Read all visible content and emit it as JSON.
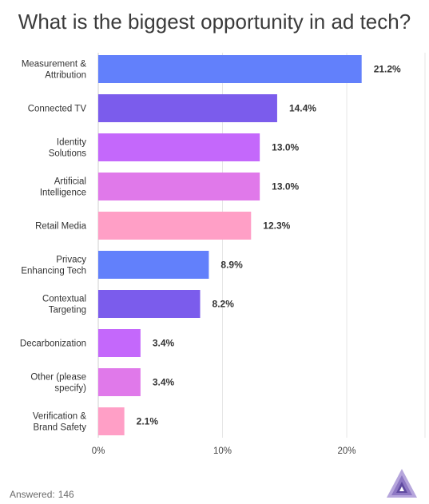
{
  "chart_data": {
    "type": "bar",
    "orientation": "horizontal",
    "title": "What is the biggest opportunity in ad tech?",
    "categories": [
      [
        "Measurement &",
        "Attribution"
      ],
      [
        "Connected TV"
      ],
      [
        "Identity",
        "Solutions"
      ],
      [
        "Artificial",
        "Intelligence"
      ],
      [
        "Retail Media"
      ],
      [
        "Privacy",
        "Enhancing Tech"
      ],
      [
        "Contextual",
        "Targeting"
      ],
      [
        "Decarbonization"
      ],
      [
        "Other (please",
        "specify)"
      ],
      [
        "Verification &",
        "Brand Safety"
      ]
    ],
    "values": [
      21.2,
      14.4,
      13.0,
      13.0,
      12.3,
      8.9,
      8.2,
      3.4,
      3.4,
      2.1
    ],
    "value_labels": [
      "21.2%",
      "14.4%",
      "13.0%",
      "13.0%",
      "12.3%",
      "8.9%",
      "8.2%",
      "3.4%",
      "3.4%",
      "2.1%"
    ],
    "colors": [
      "#6280fb",
      "#7b5cec",
      "#c468fb",
      "#e079ea",
      "#ff9fc6",
      "#6280fb",
      "#7b5cec",
      "#c468fb",
      "#e079ea",
      "#ff9fc6"
    ],
    "xlim": [
      0,
      26.3
    ],
    "xticks": [
      0,
      10,
      20
    ],
    "xtick_labels": [
      "0%",
      "10%",
      "20%"
    ],
    "grid": true
  },
  "footer": {
    "answered_label": "Answered:",
    "answered_count": "146"
  },
  "logo": {
    "icon": "triangle-logo-icon"
  }
}
